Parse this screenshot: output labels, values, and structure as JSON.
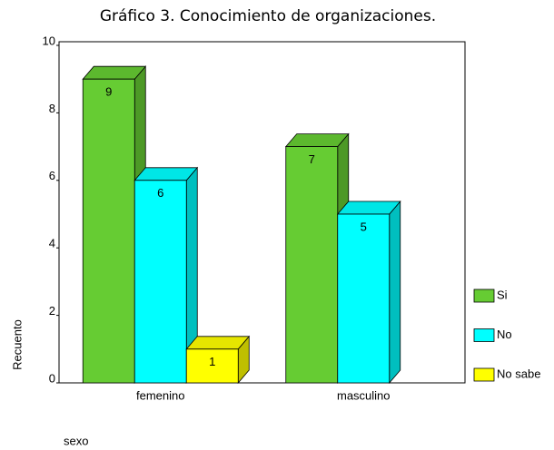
{
  "chart_data": {
    "type": "bar3d",
    "title": "Gráfico 3. Conocimiento de organizaciones.",
    "ylabel": "Recuento",
    "xlabel": "sexo",
    "categories": [
      "femenino",
      "masculino"
    ],
    "series": [
      {
        "name": "Si",
        "color": "#66cc33",
        "values": [
          9,
          7
        ]
      },
      {
        "name": "No",
        "color": "#00ffff",
        "values": [
          6,
          5
        ]
      },
      {
        "name": "No sabe",
        "color": "#ffff00",
        "values": [
          1,
          null
        ]
      }
    ],
    "ylim": [
      0,
      10
    ],
    "yticks": [
      0,
      2,
      4,
      6,
      8,
      10
    ]
  }
}
